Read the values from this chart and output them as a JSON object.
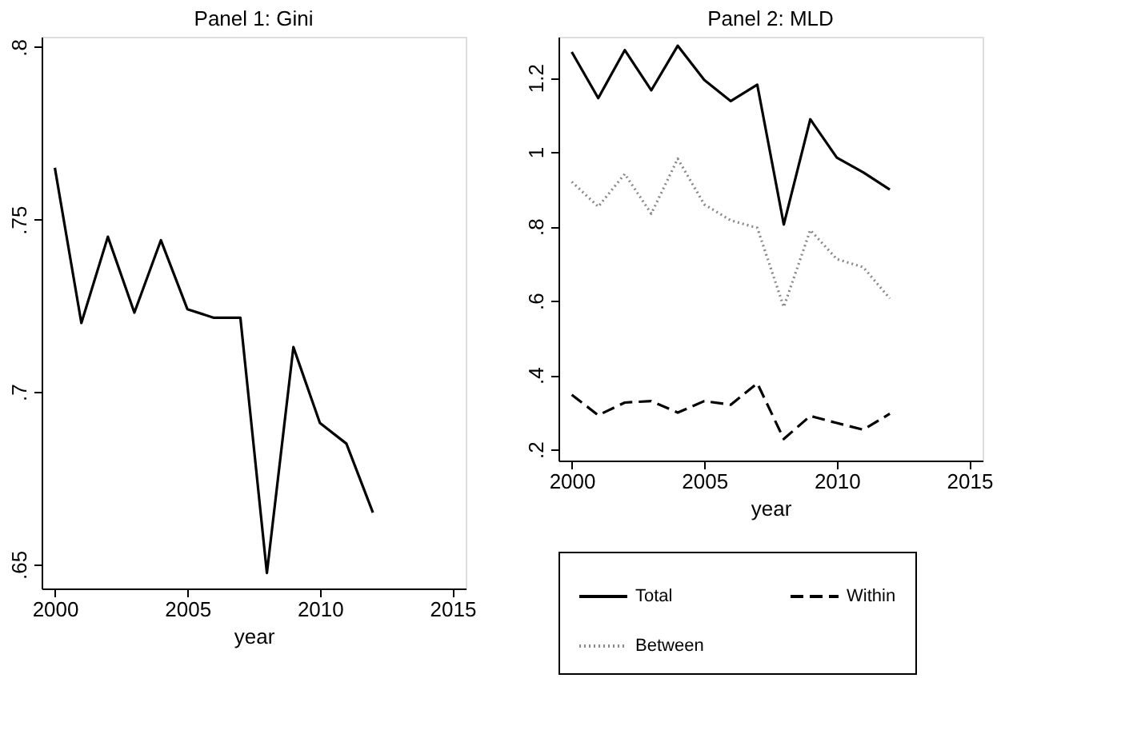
{
  "chart_data": [
    {
      "type": "line",
      "title": "Panel 1: Gini",
      "xlabel": "year",
      "xlim": [
        1999.5,
        2015.5
      ],
      "xticks": [
        2000,
        2005,
        2010,
        2015
      ],
      "ylim": [
        0.643,
        0.803
      ],
      "yticks": [
        {
          "value": 0.65,
          "label": ".65"
        },
        {
          "value": 0.7,
          "label": ".7"
        },
        {
          "value": 0.75,
          "label": ".75"
        },
        {
          "value": 0.8,
          "label": ".8"
        }
      ],
      "grid": false,
      "legend": false,
      "x": [
        2000,
        2001,
        2002,
        2003,
        2004,
        2005,
        2006,
        2007,
        2008,
        2009,
        2010,
        2011,
        2012
      ],
      "series": [
        {
          "color": "#000000",
          "line_style": "solid",
          "values": [
            0.765,
            0.72,
            0.745,
            0.723,
            0.744,
            0.724,
            0.7215,
            0.7215,
            0.6475,
            0.713,
            0.691,
            0.685,
            0.665
          ]
        }
      ]
    },
    {
      "type": "line",
      "title": "Panel 2: MLD",
      "xlabel": "year",
      "xlim": [
        1999.5,
        2015.5
      ],
      "xticks": [
        2000,
        2005,
        2010,
        2015
      ],
      "ylim": [
        0.17,
        1.31
      ],
      "yticks": [
        {
          "value": 0.2,
          "label": ".2"
        },
        {
          "value": 0.4,
          "label": ".4"
        },
        {
          "value": 0.6,
          "label": ".6"
        },
        {
          "value": 0.8,
          "label": ".8"
        },
        1,
        1.2
      ],
      "grid": false,
      "legend": "bottom",
      "x": [
        2000,
        2001,
        2002,
        2003,
        2004,
        2005,
        2006,
        2007,
        2008,
        2009,
        2010,
        2011,
        2012
      ],
      "series": [
        {
          "name": "Total",
          "color": "#000000",
          "line_style": "solid",
          "values": [
            1.269,
            1.145,
            1.274,
            1.166,
            1.286,
            1.194,
            1.137,
            1.181,
            0.805,
            1.088,
            0.985,
            0.945,
            0.899
          ]
        },
        {
          "name": "Within",
          "color": "#000000",
          "line_style": "dashed",
          "values": [
            0.347,
            0.292,
            0.326,
            0.33,
            0.299,
            0.33,
            0.32,
            0.378,
            0.228,
            0.29,
            0.271,
            0.253,
            0.296
          ]
        },
        {
          "name": "Between",
          "color": "#888888",
          "line_style": "dotted",
          "values": [
            0.92,
            0.853,
            0.941,
            0.834,
            0.982,
            0.859,
            0.816,
            0.796,
            0.583,
            0.79,
            0.712,
            0.69,
            0.606
          ]
        }
      ]
    }
  ]
}
